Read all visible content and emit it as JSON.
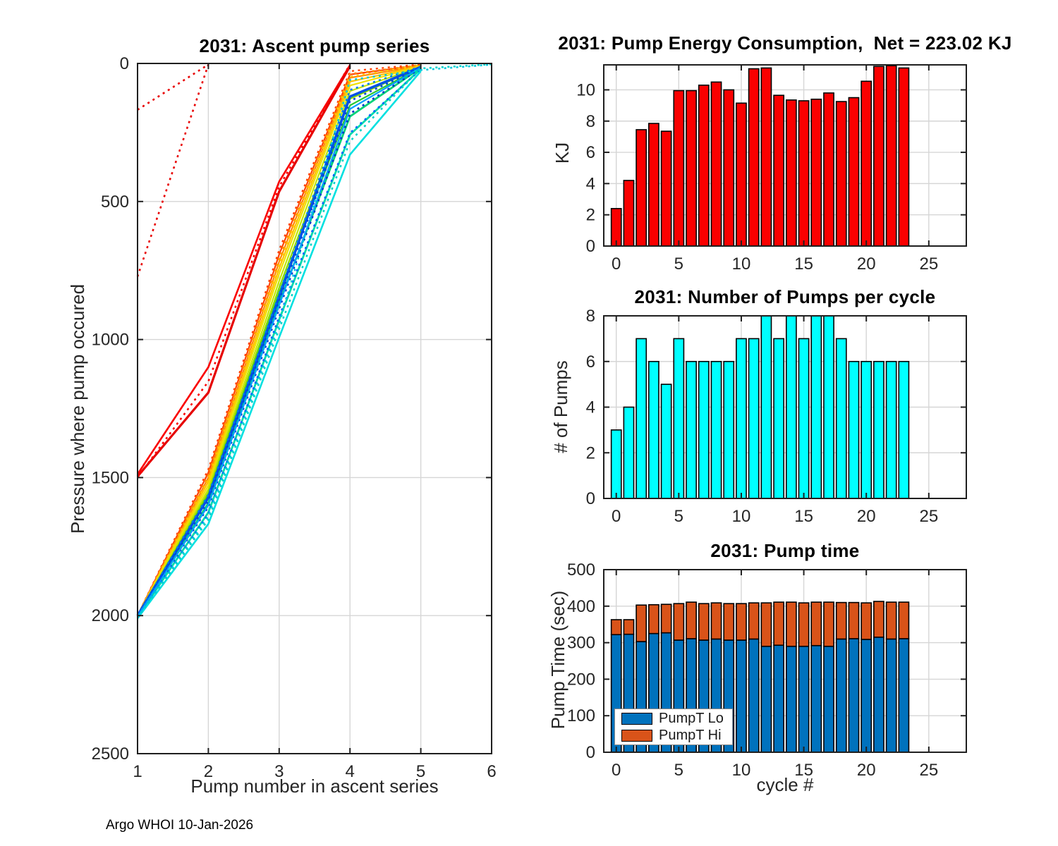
{
  "footer": "Argo WHOI 10-Jan-2026",
  "palette": {
    "axis": "#1f1f1f",
    "tick_text": "#262626",
    "grid": "#d6d6d6",
    "bar_red": "#fa0000",
    "bar_cyan": "#00ffff",
    "bar_blue": "#0072bd",
    "bar_orange": "#d95319"
  },
  "chart_data": [
    {
      "id": "ascent",
      "type": "line",
      "title": "2031: Ascent pump series",
      "xlabel": "Pump number in ascent series",
      "ylabel": "Pressure where pump occured",
      "xlim": [
        1,
        6
      ],
      "ylim": [
        0,
        2500
      ],
      "y_reversed": true,
      "xticks": [
        1,
        2,
        3,
        4,
        5,
        6
      ],
      "yticks": [
        0,
        500,
        1000,
        1500,
        2000,
        2500
      ],
      "grid": true,
      "legend_position": "none",
      "series": [
        {
          "style": "dotted",
          "color": "#e80000",
          "width": 2.6,
          "points": [
            [
              1,
              168
            ],
            [
              2,
              4
            ]
          ]
        },
        {
          "style": "dotted",
          "color": "#e80000",
          "width": 2.6,
          "points": [
            [
              1,
              772
            ],
            [
              2,
              4
            ]
          ]
        },
        {
          "style": "solid",
          "color": "#fa0000",
          "width": 2.6,
          "points": [
            [
              1,
              1488
            ],
            [
              2,
              1100
            ],
            [
              3,
              428
            ],
            [
              4,
              6
            ]
          ]
        },
        {
          "style": "solid",
          "color": "#e60000",
          "width": 3.2,
          "points": [
            [
              1,
              1496
            ],
            [
              2,
              1192
            ],
            [
              3,
              464
            ],
            [
              4,
              10
            ]
          ]
        },
        {
          "style": "dotted",
          "color": "#fa0000",
          "width": 2.6,
          "points": [
            [
              1,
              1500
            ],
            [
              2,
              1152
            ],
            [
              3,
              446
            ],
            [
              4,
              3
            ]
          ]
        },
        {
          "style": "solid",
          "color": "#ff4200",
          "width": 2.2,
          "points": [
            [
              1,
              2000
            ],
            [
              2,
              1482
            ],
            [
              3,
              692
            ],
            [
              4,
              40
            ],
            [
              5,
              6
            ]
          ]
        },
        {
          "style": "dotted",
          "color": "#ff4200",
          "width": 2.4,
          "points": [
            [
              1,
              2000
            ],
            [
              2,
              1470
            ],
            [
              3,
              676
            ],
            [
              4,
              28
            ],
            [
              5,
              3
            ]
          ]
        },
        {
          "style": "solid",
          "color": "#ff8800",
          "width": 2.2,
          "points": [
            [
              1,
              2000
            ],
            [
              2,
              1500
            ],
            [
              3,
              718
            ],
            [
              4,
              52
            ],
            [
              5,
              8
            ]
          ]
        },
        {
          "style": "dotted",
          "color": "#ff9000",
          "width": 2.4,
          "points": [
            [
              1,
              2000
            ],
            [
              2,
              1490
            ],
            [
              3,
              704
            ],
            [
              4,
              38
            ],
            [
              5,
              5
            ]
          ]
        },
        {
          "style": "solid",
          "color": "#ffc000",
          "width": 2.2,
          "points": [
            [
              1,
              2000
            ],
            [
              2,
              1514
            ],
            [
              3,
              742
            ],
            [
              4,
              66
            ],
            [
              5,
              9
            ]
          ]
        },
        {
          "style": "dotted",
          "color": "#ffc800",
          "width": 2.4,
          "points": [
            [
              1,
              2000
            ],
            [
              2,
              1506
            ],
            [
              3,
              728
            ],
            [
              4,
              48
            ],
            [
              5,
              6
            ]
          ]
        },
        {
          "style": "solid",
          "color": "#f0e000",
          "width": 2.2,
          "points": [
            [
              1,
              2000
            ],
            [
              2,
              1528
            ],
            [
              3,
              762
            ],
            [
              4,
              80
            ],
            [
              5,
              10
            ]
          ]
        },
        {
          "style": "solid",
          "color": "#c0e800",
          "width": 2.2,
          "points": [
            [
              1,
              2000
            ],
            [
              2,
              1542
            ],
            [
              3,
              788
            ],
            [
              4,
              100
            ],
            [
              5,
              12
            ]
          ]
        },
        {
          "style": "solid",
          "color": "#86d800",
          "width": 2.2,
          "points": [
            [
              1,
              2002
            ],
            [
              2,
              1554
            ],
            [
              3,
              812
            ],
            [
              4,
              128
            ],
            [
              5,
              13
            ]
          ]
        },
        {
          "style": "solid",
          "color": "#2cc832",
          "width": 2.2,
          "points": [
            [
              1,
              2002
            ],
            [
              2,
              1564
            ],
            [
              3,
              830
            ],
            [
              4,
              152
            ],
            [
              5,
              14
            ]
          ]
        },
        {
          "style": "solid",
          "color": "#00d278",
          "width": 2.8,
          "points": [
            [
              1,
              2004
            ],
            [
              2,
              1592
            ],
            [
              3,
              868
            ],
            [
              4,
              192
            ],
            [
              5,
              16
            ]
          ]
        },
        {
          "style": "solid",
          "color": "#00dcaa",
          "width": 2.8,
          "points": [
            [
              1,
              2006
            ],
            [
              2,
              1626
            ],
            [
              3,
              928
            ],
            [
              4,
              258
            ],
            [
              5,
              20
            ]
          ]
        },
        {
          "style": "solid",
          "color": "#0050e6",
          "width": 3.6,
          "points": [
            [
              1,
              2000
            ],
            [
              2,
              1572
            ],
            [
              3,
              846
            ],
            [
              4,
              120
            ],
            [
              5,
              13
            ]
          ]
        },
        {
          "style": "dotted",
          "color": "#0078f0",
          "width": 2.6,
          "points": [
            [
              1,
              2000
            ],
            [
              2,
              1562
            ],
            [
              3,
              836
            ],
            [
              4,
              96
            ],
            [
              5,
              11
            ]
          ]
        },
        {
          "style": "dotted",
          "color": "#0046dc",
          "width": 2.6,
          "points": [
            [
              1,
              2002
            ],
            [
              2,
              1584
            ],
            [
              3,
              858
            ],
            [
              4,
              136
            ],
            [
              5,
              15
            ]
          ]
        },
        {
          "style": "dotted",
          "color": "#0032c8",
          "width": 2.6,
          "points": [
            [
              1,
              2004
            ],
            [
              2,
              1606
            ],
            [
              3,
              888
            ],
            [
              4,
              182
            ],
            [
              5,
              17
            ]
          ]
        },
        {
          "style": "dotted",
          "color": "#0064ff",
          "width": 2.6,
          "points": [
            [
              1,
              2006
            ],
            [
              2,
              1632
            ],
            [
              3,
              918
            ],
            [
              4,
              252
            ],
            [
              5,
              22
            ]
          ]
        },
        {
          "style": "solid",
          "color": "#00a0ff",
          "width": 2.2,
          "points": [
            [
              1,
              2004
            ],
            [
              2,
              1600
            ],
            [
              3,
              876
            ],
            [
              4,
              165
            ],
            [
              5,
              15
            ]
          ]
        },
        {
          "style": "solid",
          "color": "#00e0e0",
          "width": 2.6,
          "points": [
            [
              1,
              2010
            ],
            [
              2,
              1668
            ],
            [
              3,
              992
            ],
            [
              4,
              330
            ],
            [
              5,
              28
            ]
          ]
        },
        {
          "style": "dotted",
          "color": "#00d2c8",
          "width": 2.6,
          "points": [
            [
              1,
              2008
            ],
            [
              2,
              1652
            ],
            [
              3,
              962
            ],
            [
              4,
              282
            ],
            [
              5,
              18
            ],
            [
              6,
              3
            ]
          ]
        },
        {
          "style": "dotted",
          "color": "#00c8dc",
          "width": 2.6,
          "points": [
            [
              1,
              2006
            ],
            [
              2,
              1640
            ],
            [
              3,
              944
            ],
            [
              4,
              60
            ],
            [
              5,
              24
            ],
            [
              6,
              4
            ]
          ]
        }
      ]
    },
    {
      "id": "energy",
      "type": "bar",
      "title": "2031: Pump Energy Consumption,  Net = 223.02 KJ",
      "net_kj": "223.02",
      "xlabel": "",
      "ylabel": "KJ",
      "bar_color": "#fa0000",
      "bar_edge": "#000000",
      "categories": [
        0,
        1,
        2,
        3,
        4,
        5,
        6,
        7,
        8,
        9,
        10,
        11,
        12,
        13,
        14,
        15,
        16,
        17,
        18,
        19,
        20,
        21,
        22,
        23
      ],
      "values": [
        2.4,
        4.2,
        7.45,
        7.85,
        7.35,
        9.95,
        9.95,
        10.3,
        10.5,
        10.0,
        9.15,
        11.35,
        11.4,
        9.65,
        9.35,
        9.3,
        9.4,
        9.8,
        9.25,
        9.5,
        10.55,
        11.5,
        11.55,
        11.4
      ],
      "xlim": [
        -1,
        28
      ],
      "ylim": [
        0,
        11.6
      ],
      "xticks": [
        0,
        5,
        10,
        15,
        20,
        25
      ],
      "yticks": [
        0,
        2,
        4,
        6,
        8,
        10
      ],
      "grid": true,
      "legend_position": "none"
    },
    {
      "id": "pumps",
      "type": "bar",
      "title": "2031: Number of Pumps per cycle",
      "xlabel": "",
      "ylabel": "# of Pumps",
      "bar_color": "#00ffff",
      "bar_edge": "#000000",
      "categories": [
        0,
        1,
        2,
        3,
        4,
        5,
        6,
        7,
        8,
        9,
        10,
        11,
        12,
        13,
        14,
        15,
        16,
        17,
        18,
        19,
        20,
        21,
        22,
        23
      ],
      "values": [
        3,
        4,
        7,
        6,
        5,
        7,
        6,
        6,
        6,
        6,
        7,
        7,
        8,
        7,
        8,
        7,
        8,
        8,
        7,
        6,
        6,
        6,
        6,
        6
      ],
      "xlim": [
        -1,
        28
      ],
      "ylim": [
        0,
        8
      ],
      "xticks": [
        0,
        5,
        10,
        15,
        20,
        25
      ],
      "yticks": [
        0,
        2,
        4,
        6,
        8
      ],
      "grid": true,
      "legend_position": "none"
    },
    {
      "id": "time",
      "type": "stacked-bar",
      "title": "2031: Pump time",
      "xlabel": "cycle #",
      "ylabel": "Pump Time (sec)",
      "bar_edge": "#000000",
      "categories": [
        0,
        1,
        2,
        3,
        4,
        5,
        6,
        7,
        8,
        9,
        10,
        11,
        12,
        13,
        14,
        15,
        16,
        17,
        18,
        19,
        20,
        21,
        22,
        23
      ],
      "series": [
        {
          "name": "PumpT Lo",
          "color": "#0072bd",
          "values": [
            322,
            323,
            303,
            325,
            327,
            307,
            311,
            307,
            310,
            307,
            307,
            310,
            290,
            293,
            290,
            290,
            292,
            290,
            310,
            311,
            309,
            315,
            310,
            311
          ]
        },
        {
          "name": "PumpT Hi",
          "color": "#d95319",
          "values": [
            41,
            40,
            100,
            79,
            78,
            100,
            100,
            100,
            99,
            100,
            100,
            99,
            119,
            118,
            121,
            119,
            119,
            121,
            100,
            99,
            100,
            98,
            101,
            100
          ]
        }
      ],
      "xlim": [
        -1,
        28
      ],
      "ylim": [
        0,
        500
      ],
      "xticks": [
        0,
        5,
        10,
        15,
        20,
        25
      ],
      "yticks": [
        0,
        100,
        200,
        300,
        400,
        500
      ],
      "grid": true,
      "legend_position": "lower-left"
    }
  ]
}
